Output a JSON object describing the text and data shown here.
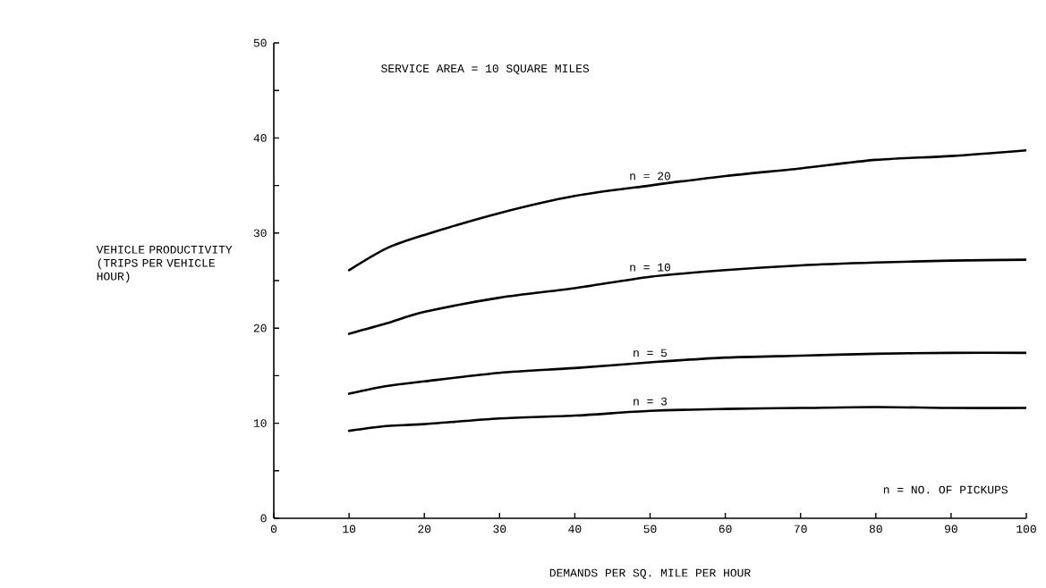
{
  "chart_data": {
    "type": "line",
    "xlabel": "DEMANDS PER SQ. MILE PER HOUR",
    "ylabel": "VEHICLE PRODUCTIVITY (TRIPS PER VEHICLE HOUR)",
    "annotations": [
      "SERVICE AREA = 10  SQUARE MILES",
      "n = NO. OF PICKUPS"
    ],
    "x": [
      10,
      15,
      20,
      30,
      40,
      50,
      60,
      70,
      80,
      90,
      100
    ],
    "series": [
      {
        "name": "n = 20",
        "color": "#000000",
        "values": [
          26.1,
          28.4,
          29.8,
          32.1,
          33.9,
          35.0,
          36.0,
          36.8,
          37.7,
          38.1,
          38.7
        ]
      },
      {
        "name": "n = 10",
        "color": "#000000",
        "values": [
          19.4,
          20.5,
          21.7,
          23.2,
          24.2,
          25.4,
          26.1,
          26.6,
          26.9,
          27.1,
          27.2
        ]
      },
      {
        "name": "n = 5",
        "color": "#000000",
        "values": [
          13.1,
          13.9,
          14.4,
          15.3,
          15.8,
          16.4,
          16.9,
          17.1,
          17.3,
          17.4,
          17.4
        ]
      },
      {
        "name": "n = 3",
        "color": "#000000",
        "values": [
          9.2,
          9.7,
          9.9,
          10.5,
          10.8,
          11.3,
          11.5,
          11.6,
          11.7,
          11.6,
          11.6
        ]
      }
    ],
    "xlim": [
      0,
      100
    ],
    "ylim": [
      0,
      50
    ],
    "xticks": [
      0,
      10,
      20,
      30,
      40,
      50,
      60,
      70,
      80,
      90,
      100
    ],
    "yticks": [
      0,
      {
        "value": 5,
        "label": null
      },
      10,
      {
        "value": 15,
        "label": null
      },
      20,
      {
        "value": 25,
        "label": null
      },
      30,
      {
        "value": 35,
        "label": null
      },
      40,
      {
        "value": 45,
        "label": null
      },
      50
    ],
    "grid": false,
    "legend": false,
    "marker": "none",
    "line_style": "solid"
  }
}
